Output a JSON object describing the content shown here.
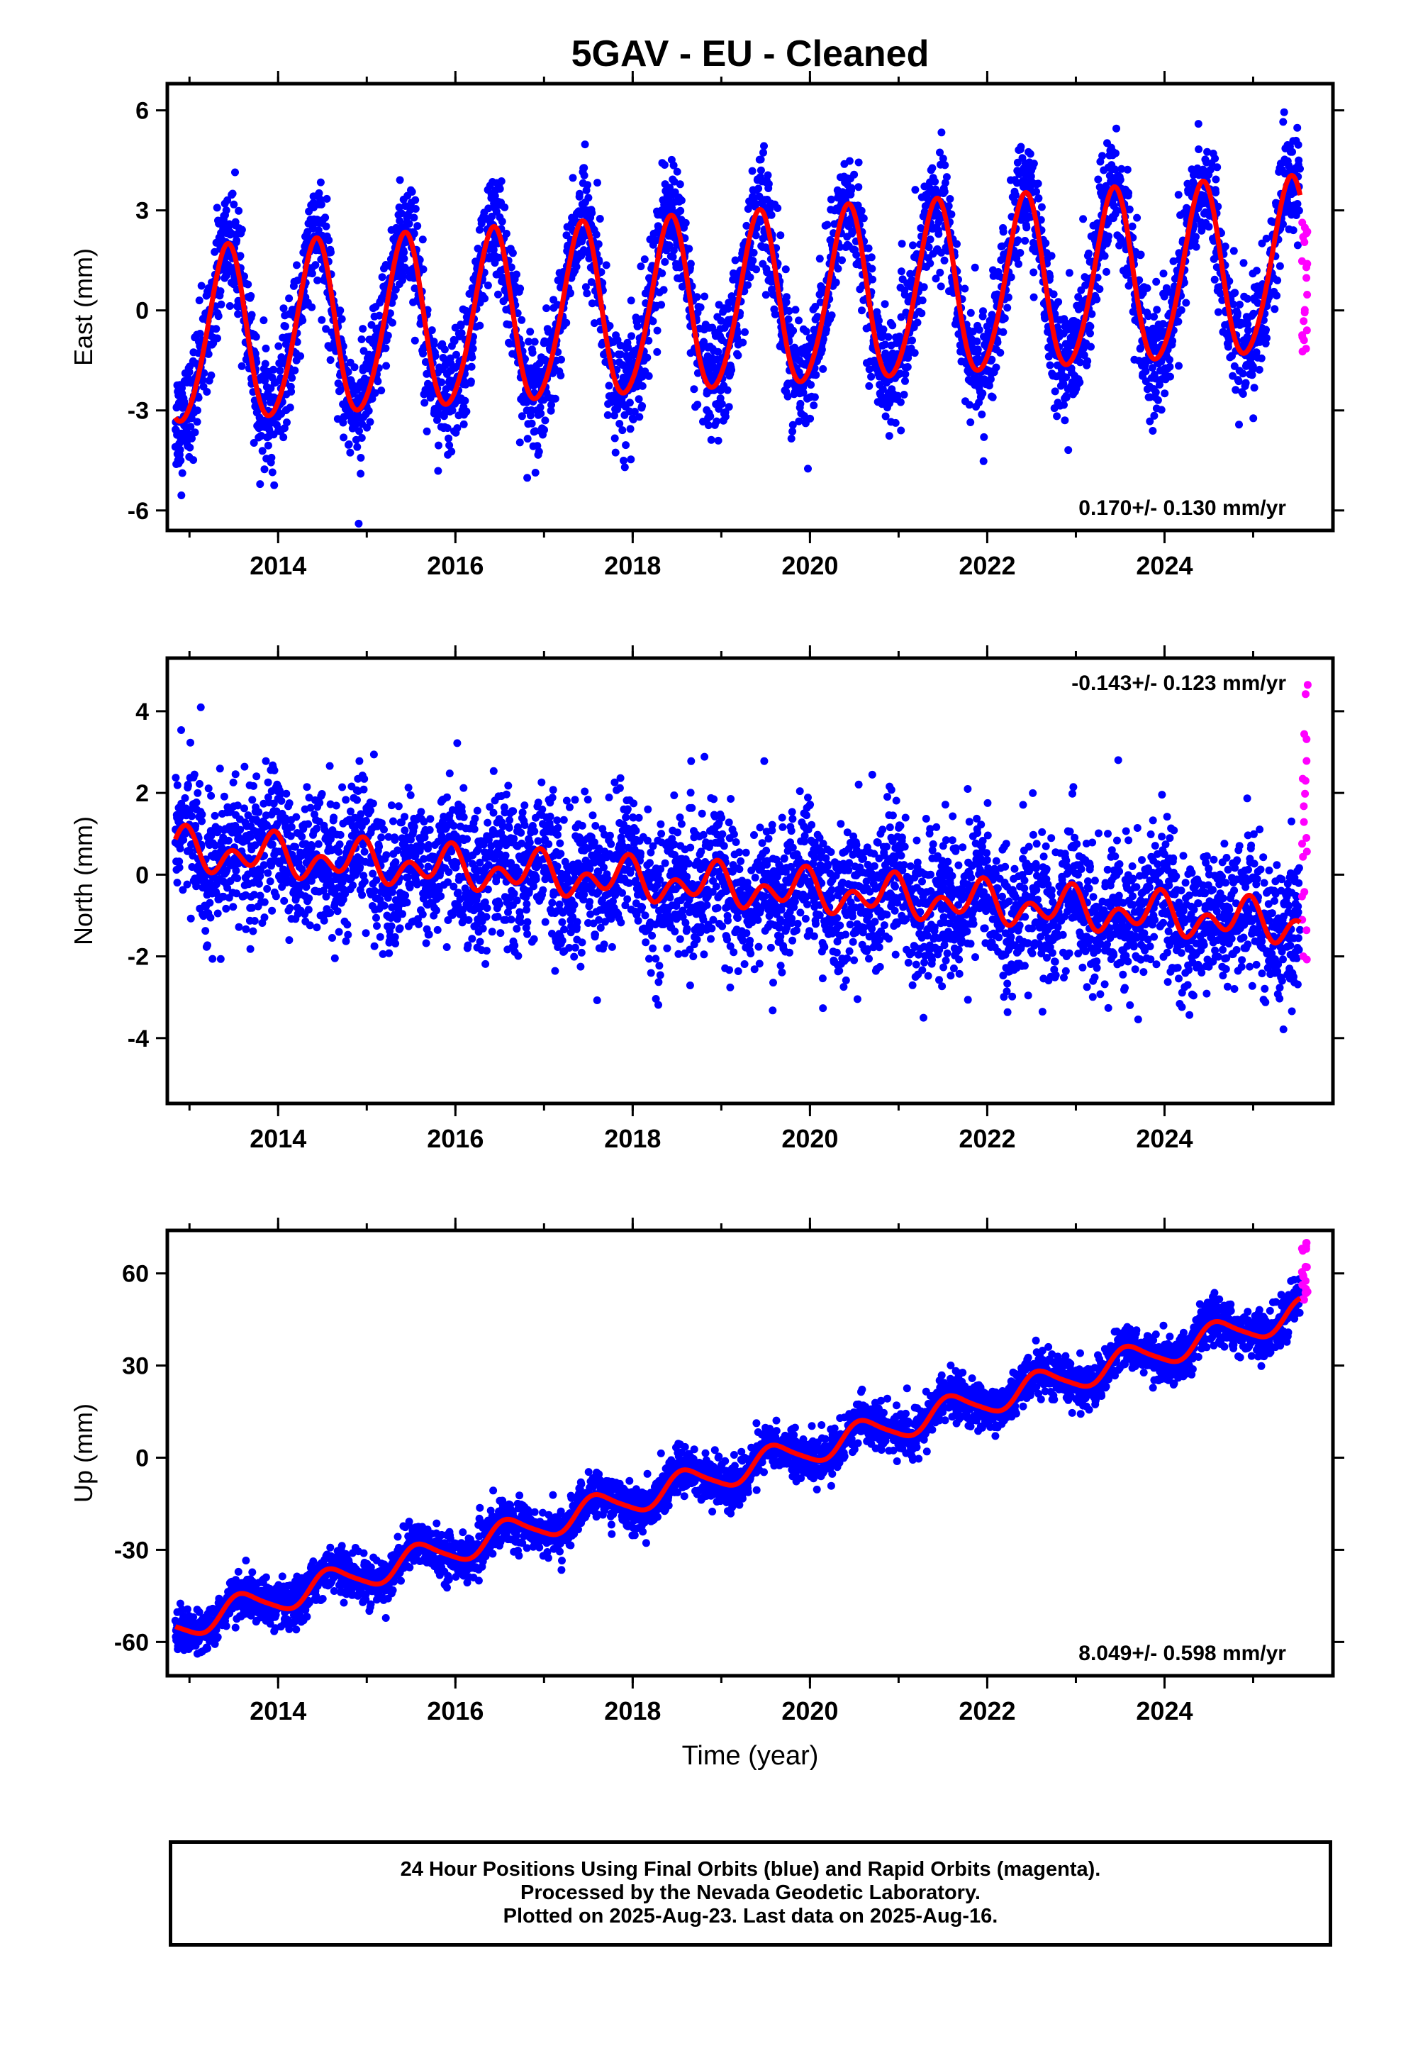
{
  "title": "5GAV  - EU - Cleaned",
  "colors": {
    "final": "#0000ff",
    "rapid": "#ff00ff",
    "model": "#ff0000",
    "axis": "#000000"
  },
  "xaxis": {
    "label": "Time (year)",
    "ticks": [
      "2014",
      "2016",
      "2018",
      "2020",
      "2022",
      "2024"
    ]
  },
  "footer": {
    "line1": "24 Hour Positions Using Final Orbits (blue) and Rapid Orbits (magenta).",
    "line2": "Processed by the Nevada Geodetic Laboratory.",
    "line3": "Plotted on 2025-Aug-23. Last data on 2025-Aug-16."
  },
  "chart_data": [
    {
      "type": "scatter",
      "panel": "east",
      "ylabel": "East (mm)",
      "xlim": [
        2012.75,
        2025.9
      ],
      "ylim": [
        -6.6,
        6.8
      ],
      "yticks": [
        "-6",
        "-3",
        "0",
        "3",
        "6"
      ],
      "ytick_values": [
        -6,
        -3,
        0,
        3,
        6
      ],
      "rate": "0.170+/- 0.130 mm/yr",
      "rate_position": "bottom-right",
      "model": {
        "offset": -0.9,
        "trend": 0.17,
        "annual_amp_start": 2.6,
        "annual_amp_end": 2.6,
        "annual_peak": 2013.42,
        "semi_amp": 0.25,
        "semi_phase": 0.3
      },
      "data_range": [
        2012.84,
        2025.53
      ],
      "scatter_sd": 0.85,
      "rapid_x": [
        2025.55,
        2025.62
      ],
      "rapid_y": [
        -1.4,
        3.4
      ]
    },
    {
      "type": "scatter",
      "panel": "north",
      "ylabel": "North (mm)",
      "xlim": [
        2012.75,
        2025.9
      ],
      "ylim": [
        -5.6,
        5.3
      ],
      "yticks": [
        "-4",
        "-2",
        "0",
        "2",
        "4"
      ],
      "ytick_values": [
        -4,
        -2,
        0,
        2,
        4
      ],
      "rate": "-0.143+/- 0.123 mm/yr",
      "rate_position": "top-right",
      "model": {
        "offset": 0.6,
        "trend": -0.143,
        "annual_amp_start": 0.3,
        "annual_amp_end": 0.3,
        "annual_peak": 2012.9,
        "semi_amp": 0.35,
        "semi_phase": 0.4
      },
      "data_range": [
        2012.84,
        2025.53
      ],
      "scatter_sd": 0.85,
      "rapid_x": [
        2025.55,
        2025.62
      ],
      "rapid_y": [
        -2.2,
        5.2
      ]
    },
    {
      "type": "scatter",
      "panel": "up",
      "ylabel": "Up (mm)",
      "xlim": [
        2012.75,
        2025.9
      ],
      "ylim": [
        -71,
        74
      ],
      "yticks": [
        "-60",
        "-30",
        "0",
        "30",
        "60"
      ],
      "ytick_values": [
        -60,
        -30,
        0,
        30,
        60
      ],
      "rate": "8.049+/- 0.598 mm/yr",
      "rate_position": "bottom-right",
      "model": {
        "offset": -55,
        "trend": 8.049,
        "annual_amp_start": 4.5,
        "annual_amp_end": 4.5,
        "annual_peak": 2013.6,
        "semi_amp": 0.8,
        "semi_phase": 0.1
      },
      "data_range": [
        2012.84,
        2025.53
      ],
      "scatter_sd": 3.6,
      "rapid_x": [
        2025.55,
        2025.62
      ],
      "rapid_y": [
        50,
        71
      ]
    }
  ]
}
